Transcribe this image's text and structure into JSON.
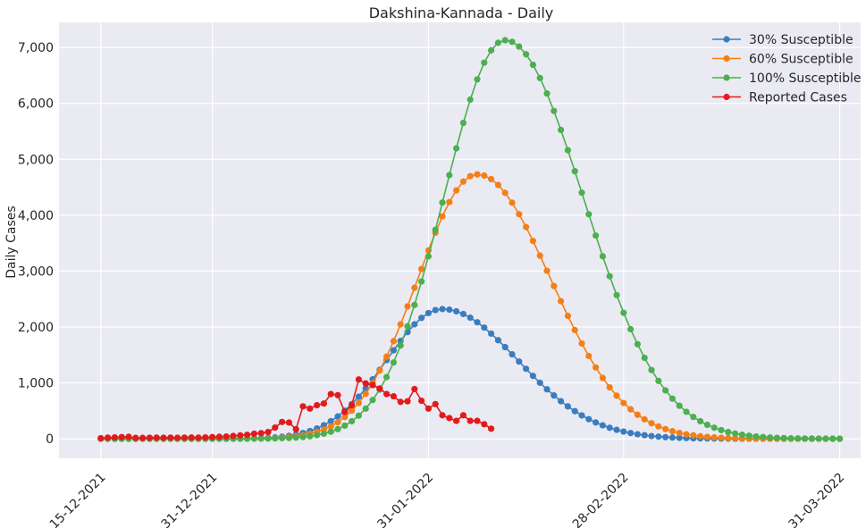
{
  "chart_data": {
    "type": "line",
    "title": "Dakshina-Kannada - Daily",
    "xlabel": "",
    "ylabel": "Daily Cases",
    "ylim": [
      -350,
      7450
    ],
    "yticks": [
      0,
      1000,
      2000,
      3000,
      4000,
      5000,
      6000,
      7000
    ],
    "ytick_labels": [
      "0",
      "1,000",
      "2,000",
      "3,000",
      "4,000",
      "5,000",
      "6,000",
      "7,000"
    ],
    "x_start": "2021-12-15",
    "x_end": "2022-03-31",
    "xlim": [
      "2021-12-09",
      "2022-04-03"
    ],
    "xticks": [
      "2021-12-15",
      "2021-12-31",
      "2022-01-31",
      "2022-02-28",
      "2022-03-31"
    ],
    "xtick_labels": [
      "15-12-2021",
      "31-12-2021",
      "31-01-2022",
      "28-02-2022",
      "31-03-2022"
    ],
    "grid": true,
    "background": "#eaeaf2",
    "legend_position": "top-right",
    "series": [
      {
        "name": "30% Susceptible",
        "color": "#3a7dbf",
        "peak_date": "2022-02-02",
        "peak_value": 2320,
        "sigma_left_days": 8.0,
        "sigma_right_days": 10.8,
        "start_date": "2021-12-15",
        "end_date": "2022-03-31"
      },
      {
        "name": "60% Susceptible",
        "color": "#f57f17",
        "peak_date": "2022-02-07",
        "peak_value": 4730,
        "sigma_left_days": 8.5,
        "sigma_right_days": 10.5,
        "start_date": "2021-12-15",
        "end_date": "2022-03-31"
      },
      {
        "name": "100% Susceptible",
        "color": "#4caf50",
        "peak_date": "2022-02-11",
        "peak_value": 7130,
        "sigma_left_days": 8.8,
        "sigma_right_days": 11.2,
        "start_date": "2021-12-15",
        "end_date": "2022-03-31"
      },
      {
        "name": "Reported Cases",
        "color": "#e31a1c",
        "start_date": "2021-12-15",
        "values": [
          10,
          20,
          25,
          30,
          35,
          15,
          15,
          18,
          20,
          18,
          20,
          18,
          20,
          22,
          20,
          25,
          30,
          35,
          40,
          50,
          60,
          70,
          90,
          100,
          120,
          200,
          300,
          290,
          170,
          580,
          540,
          600,
          630,
          800,
          780,
          480,
          600,
          1060,
          990,
          960,
          900,
          800,
          760,
          660,
          670,
          890,
          680,
          540,
          620,
          420,
          370,
          320,
          420,
          320,
          320,
          260,
          180
        ]
      }
    ]
  }
}
